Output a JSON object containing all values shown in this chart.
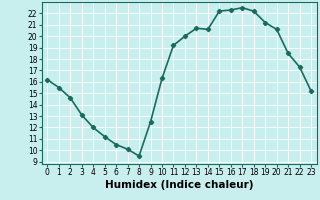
{
  "x": [
    0,
    1,
    2,
    3,
    4,
    5,
    6,
    7,
    8,
    9,
    10,
    11,
    12,
    13,
    14,
    15,
    16,
    17,
    18,
    19,
    20,
    21,
    22,
    23
  ],
  "y": [
    16.2,
    15.5,
    14.6,
    13.1,
    12.0,
    11.2,
    10.5,
    10.1,
    9.5,
    12.5,
    16.3,
    19.2,
    20.0,
    20.7,
    20.6,
    22.2,
    22.3,
    22.5,
    22.2,
    21.2,
    20.6,
    18.5,
    17.3,
    15.2
  ],
  "line_color": "#1a6b5e",
  "marker": "D",
  "marker_size": 2.2,
  "bg_color": "#c8eeee",
  "grid_color": "#ffffff",
  "xlabel": "Humidex (Indice chaleur)",
  "ylim": [
    8.8,
    23.0
  ],
  "xlim": [
    -0.5,
    23.5
  ],
  "yticks": [
    9,
    10,
    11,
    12,
    13,
    14,
    15,
    16,
    17,
    18,
    19,
    20,
    21,
    22
  ],
  "xticks": [
    0,
    1,
    2,
    3,
    4,
    5,
    6,
    7,
    8,
    9,
    10,
    11,
    12,
    13,
    14,
    15,
    16,
    17,
    18,
    19,
    20,
    21,
    22,
    23
  ],
  "tick_fontsize": 5.5,
  "xlabel_fontsize": 7.5,
  "linewidth": 1.2
}
